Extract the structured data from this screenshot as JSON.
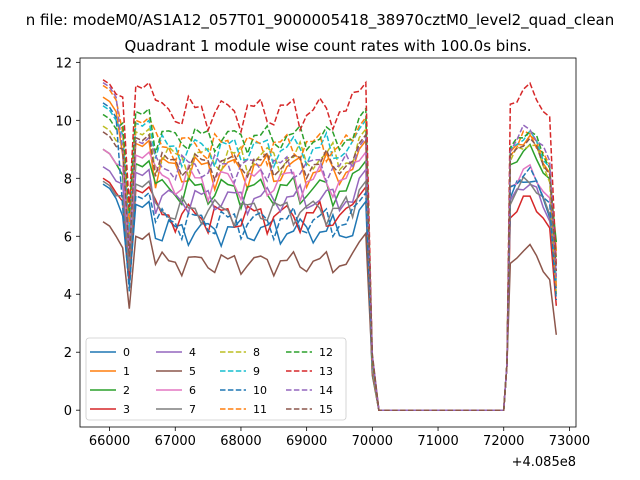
{
  "chart_data": {
    "type": "line",
    "suptitle": "n file: modeM0/AS1A12_057T01_9000005418_38970cztM0_level2_quad_clean",
    "title": "Quadrant 1 module wise count rates with 100.0s bins.",
    "xlabel": "",
    "ylabel": "",
    "x_offset_label": "+4.085e8",
    "xlim": [
      65550,
      73100
    ],
    "ylim": [
      -0.58,
      12.15
    ],
    "x_ticks": [
      66000,
      67000,
      68000,
      69000,
      70000,
      71000,
      72000,
      73000
    ],
    "x_tick_labels": [
      "66000",
      "67000",
      "68000",
      "69000",
      "70000",
      "71000",
      "72000",
      "73000"
    ],
    "y_ticks": [
      0,
      2,
      4,
      6,
      8,
      10,
      12
    ],
    "y_tick_labels": [
      "0",
      "2",
      "4",
      "6",
      "8",
      "10",
      "12"
    ],
    "legend_position": "lower-left",
    "gap_window": {
      "x": [
        70100,
        72000
      ],
      "value": 0
    },
    "x_segments": [
      [
        65900,
        69900
      ],
      [
        72100,
        72800
      ]
    ],
    "step": 100,
    "series": [
      {
        "name": "0",
        "color": "#1f77b4",
        "linestyle": "solid",
        "base": 6.2,
        "amp": 0.35,
        "phase": 0.0,
        "drop": 4.3,
        "edge": 7.8,
        "peak": 8.0,
        "postend": 5.8
      },
      {
        "name": "1",
        "color": "#ff7f0e",
        "linestyle": "solid",
        "base": 8.3,
        "amp": 0.45,
        "phase": 1.1,
        "drop": 5.8,
        "edge": 10.8,
        "peak": 9.4,
        "postend": 5.5
      },
      {
        "name": "2",
        "color": "#2ca02c",
        "linestyle": "solid",
        "base": 7.6,
        "amp": 0.4,
        "phase": 2.3,
        "drop": 4.9,
        "edge": 9.0,
        "peak": 9.0,
        "postend": 5.8
      },
      {
        "name": "3",
        "color": "#d62728",
        "linestyle": "solid",
        "base": 6.7,
        "amp": 0.4,
        "phase": 3.1,
        "drop": 4.5,
        "edge": 8.0,
        "peak": 7.3,
        "postend": 3.6
      },
      {
        "name": "4",
        "color": "#9467bd",
        "linestyle": "solid",
        "base": 7.3,
        "amp": 0.35,
        "phase": 0.7,
        "drop": 5.2,
        "edge": 8.4,
        "peak": 7.8,
        "postend": 5.0
      },
      {
        "name": "5",
        "color": "#8c564b",
        "linestyle": "solid",
        "base": 5.1,
        "amp": 0.3,
        "phase": 1.9,
        "drop": 3.5,
        "edge": 6.5,
        "peak": 5.6,
        "postend": 2.6
      },
      {
        "name": "6",
        "color": "#e377c2",
        "linestyle": "solid",
        "base": 7.9,
        "amp": 0.45,
        "phase": 2.7,
        "drop": 5.5,
        "edge": 9.0,
        "peak": 8.3,
        "postend": 4.5
      },
      {
        "name": "7",
        "color": "#7f7f7f",
        "linestyle": "solid",
        "base": 6.9,
        "amp": 0.35,
        "phase": 4.0,
        "drop": 4.8,
        "edge": 7.9,
        "peak": 7.9,
        "postend": 4.2
      },
      {
        "name": "8",
        "color": "#bcbd22",
        "linestyle": "dashed",
        "base": 8.7,
        "amp": 0.4,
        "phase": 0.4,
        "drop": 6.0,
        "edge": 9.8,
        "peak": 9.2,
        "postend": 4.0
      },
      {
        "name": "9",
        "color": "#17becf",
        "linestyle": "dashed",
        "base": 9.0,
        "amp": 0.4,
        "phase": 1.6,
        "drop": 6.2,
        "edge": 10.5,
        "peak": 9.5,
        "postend": 4.3
      },
      {
        "name": "10",
        "color": "#1f77b4",
        "linestyle": "dashed",
        "base": 6.5,
        "amp": 0.4,
        "phase": 2.0,
        "drop": 4.1,
        "edge": 10.6,
        "peak": 8.2,
        "postend": 3.8
      },
      {
        "name": "11",
        "color": "#ff7f0e",
        "linestyle": "dashed",
        "base": 9.1,
        "amp": 0.4,
        "phase": 3.4,
        "drop": 6.5,
        "edge": 11.2,
        "peak": 9.5,
        "postend": 4.2
      },
      {
        "name": "12",
        "color": "#2ca02c",
        "linestyle": "dashed",
        "base": 9.4,
        "amp": 0.35,
        "phase": 0.9,
        "drop": 6.8,
        "edge": 10.2,
        "peak": 9.6,
        "postend": 5.2
      },
      {
        "name": "13",
        "color": "#d62728",
        "linestyle": "dashed",
        "base": 10.3,
        "amp": 0.45,
        "phase": 2.5,
        "drop": 7.0,
        "edge": 11.4,
        "peak": 11.1,
        "postend": 5.0
      },
      {
        "name": "14",
        "color": "#9467bd",
        "linestyle": "dashed",
        "base": 8.4,
        "amp": 0.35,
        "phase": 3.7,
        "drop": 5.7,
        "edge": 11.3,
        "peak": 9.7,
        "postend": 4.6
      },
      {
        "name": "15",
        "color": "#8c564b",
        "linestyle": "dashed",
        "base": 8.5,
        "amp": 0.35,
        "phase": 1.3,
        "drop": 5.3,
        "edge": 9.6,
        "peak": 9.3,
        "postend": 4.8
      }
    ]
  }
}
